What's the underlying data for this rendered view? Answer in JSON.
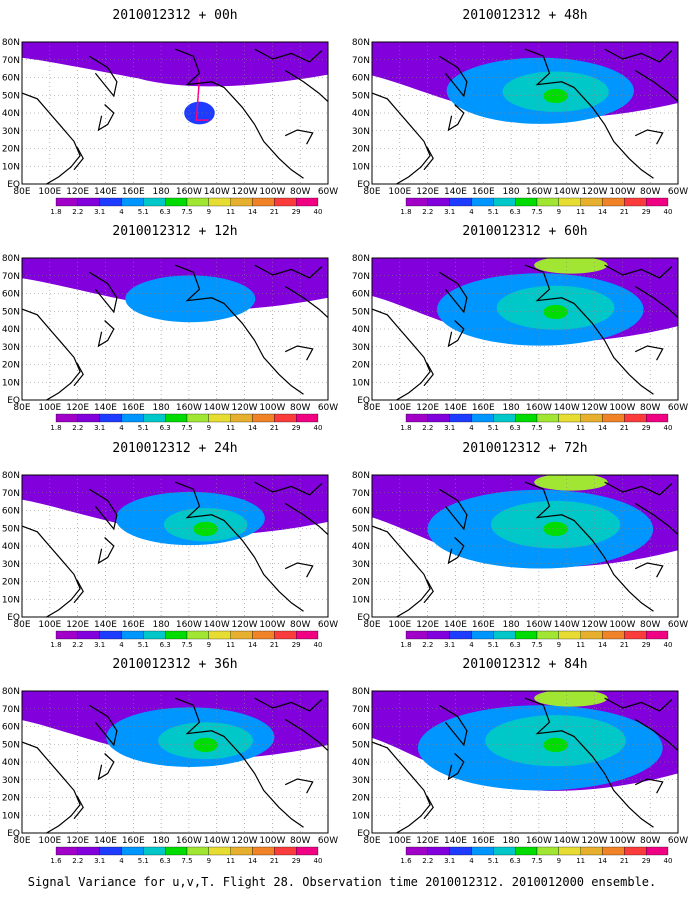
{
  "caption": "Signal Variance for u,v,T. Flight 28. Observation time 2010012312. 2010012000 ensemble.",
  "colorbar": {
    "labels": [
      "1.8",
      "2.2",
      "3.1",
      "4",
      "5.1",
      "6.3",
      "7.5",
      "9",
      "11",
      "14",
      "21",
      "29",
      "40"
    ],
    "bottom_row_first_label": "1.6",
    "colors": [
      "#a000c8",
      "#8200dc",
      "#1e3cff",
      "#0096ff",
      "#00c8c8",
      "#00dc00",
      "#a0e632",
      "#e6dc32",
      "#e6af2d",
      "#f08228",
      "#fa3c3c",
      "#f00082"
    ]
  },
  "axes": {
    "lon_labels": [
      "80E",
      "100E",
      "120E",
      "140E",
      "160E",
      "180",
      "160W",
      "140W",
      "120W",
      "100W",
      "80W",
      "60W"
    ],
    "lat_labels": [
      "80N",
      "70N",
      "60N",
      "50N",
      "40N",
      "30N",
      "20N",
      "10N",
      "EQ"
    ]
  },
  "panels": [
    {
      "title": "2010012312 + 00h",
      "lead": "00h",
      "level": 1
    },
    {
      "title": "2010012312 + 48h",
      "lead": "48h",
      "level": 5
    },
    {
      "title": "2010012312 + 12h",
      "lead": "12h",
      "level": 2
    },
    {
      "title": "2010012312 + 60h",
      "lead": "60h",
      "level": 6
    },
    {
      "title": "2010012312 + 24h",
      "lead": "24h",
      "level": 3
    },
    {
      "title": "2010012312 + 72h",
      "lead": "72h",
      "level": 7
    },
    {
      "title": "2010012312 + 36h",
      "lead": "36h",
      "level": 4
    },
    {
      "title": "2010012312 + 84h",
      "lead": "84h",
      "level": 8
    }
  ]
}
